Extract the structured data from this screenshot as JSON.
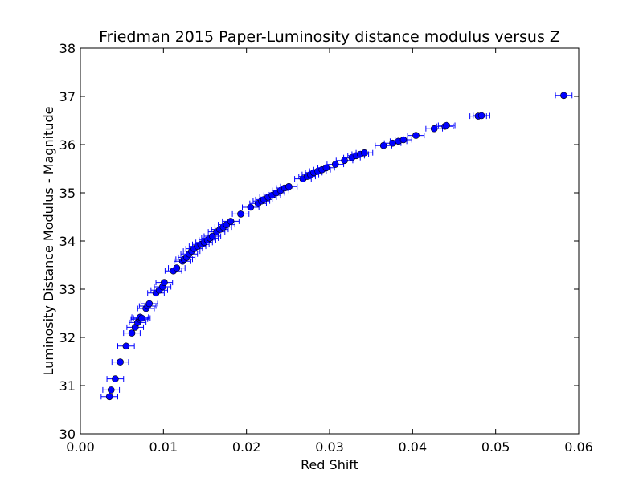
{
  "chart_data": {
    "type": "scatter",
    "title": "Friedman 2015 Paper-Luminosity distance modulus versus Z",
    "xlabel": "Red Shift",
    "ylabel": "Luminosity Distance Modulus - Magnitude",
    "xlim": [
      0.0,
      0.06
    ],
    "ylim": [
      30,
      38
    ],
    "x_ticks": [
      "0.00",
      "0.01",
      "0.02",
      "0.03",
      "0.04",
      "0.05",
      "0.06"
    ],
    "y_ticks": [
      "30",
      "31",
      "32",
      "33",
      "34",
      "35",
      "36",
      "37",
      "38"
    ],
    "grid": false,
    "legend": false,
    "marker_color": "#0000ff",
    "error_bar_color": "#0000ff",
    "x_error": 0.001,
    "series": [
      {
        "x": [
          0.0035,
          0.0037,
          0.0042,
          0.0048,
          0.0055,
          0.0062,
          0.0066,
          0.0069,
          0.0071,
          0.0072,
          0.0074,
          0.0079,
          0.0081,
          0.0083,
          0.0091,
          0.0095,
          0.0099,
          0.0101,
          0.0112,
          0.0116,
          0.0123,
          0.0125,
          0.0128,
          0.0131,
          0.0134,
          0.0137,
          0.0141,
          0.0145,
          0.0149,
          0.0153,
          0.0156,
          0.0159,
          0.0164,
          0.0168,
          0.0172,
          0.0176,
          0.0181,
          0.0193,
          0.0205,
          0.0214,
          0.0218,
          0.0221,
          0.0226,
          0.0231,
          0.0236,
          0.0241,
          0.0246,
          0.0251,
          0.0268,
          0.0273,
          0.0277,
          0.0281,
          0.0286,
          0.0291,
          0.0296,
          0.0307,
          0.0318,
          0.0327,
          0.0332,
          0.0337,
          0.0342,
          0.0365,
          0.0376,
          0.0383,
          0.0389,
          0.0404,
          0.0426,
          0.0439,
          0.0441,
          0.0479,
          0.0483,
          0.0582
        ],
        "y": [
          30.77,
          30.91,
          31.14,
          31.49,
          31.82,
          32.09,
          32.21,
          32.31,
          32.38,
          32.42,
          32.4,
          32.6,
          32.65,
          32.7,
          32.92,
          32.98,
          33.05,
          33.14,
          33.38,
          33.44,
          33.58,
          33.62,
          33.66,
          33.73,
          33.79,
          33.84,
          33.89,
          33.93,
          33.97,
          34.02,
          34.06,
          34.1,
          34.19,
          34.24,
          34.29,
          34.34,
          34.41,
          34.56,
          34.7,
          34.78,
          34.83,
          34.86,
          34.91,
          34.95,
          35.0,
          35.05,
          35.1,
          35.13,
          35.29,
          35.34,
          35.38,
          35.42,
          35.45,
          35.48,
          35.52,
          35.59,
          35.67,
          35.73,
          35.77,
          35.8,
          35.83,
          35.98,
          36.03,
          36.07,
          36.1,
          36.19,
          36.33,
          36.38,
          36.4,
          36.59,
          36.6,
          37.02
        ]
      }
    ]
  }
}
